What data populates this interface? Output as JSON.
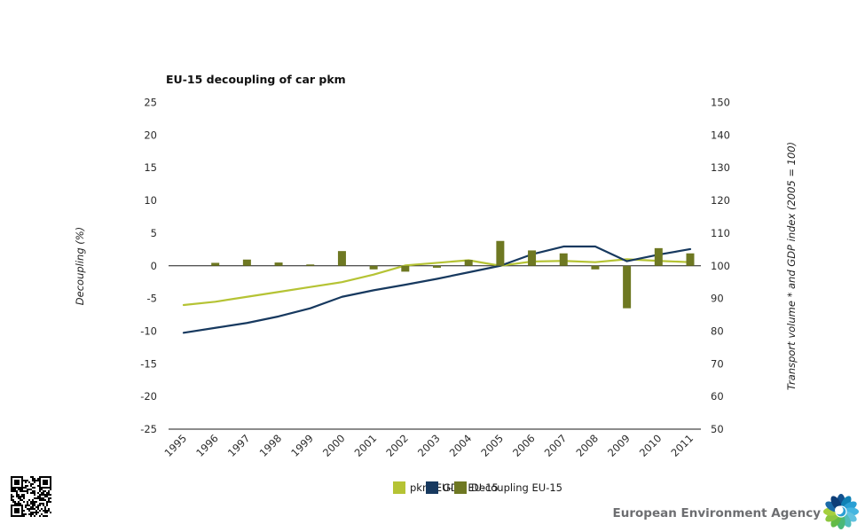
{
  "chart_data": {
    "type": "line+bar",
    "title": "EU-15 decoupling of car pkm",
    "categories": [
      1995,
      1996,
      1997,
      1998,
      1999,
      2000,
      2001,
      2002,
      2003,
      2004,
      2005,
      2006,
      2007,
      2008,
      2009,
      2010,
      2011
    ],
    "series": [
      {
        "name": "pkm EU-15",
        "type": "line",
        "axis": "right",
        "color": "#b5c334",
        "values": [
          88,
          89,
          90.5,
          92,
          93.5,
          95,
          97.3,
          100.1,
          100.9,
          101.7,
          100,
          101.3,
          101.5,
          101.1,
          102,
          101.5,
          101.1
        ]
      },
      {
        "name": "GDP EU-15",
        "type": "line",
        "axis": "right",
        "color": "#17395f",
        "values": [
          79.5,
          81,
          82.5,
          84.5,
          87,
          90.5,
          92.5,
          94.2,
          96,
          98,
          100,
          103.5,
          105.9,
          105.9,
          101.4,
          103.4,
          105.1
        ]
      },
      {
        "name": "Decoupling EU-15",
        "type": "bar",
        "axis": "left",
        "color": "#6e7822",
        "values": [
          0,
          0.45,
          0.95,
          0.5,
          0.2,
          2.25,
          -0.55,
          -0.9,
          -0.3,
          0.9,
          3.8,
          2.35,
          1.9,
          -0.55,
          -6.5,
          2.7,
          1.9
        ]
      }
    ],
    "left_axis": {
      "label": "Decoupling (%)",
      "range": [
        -25,
        25
      ],
      "ticks": [
        25,
        20,
        15,
        10,
        5,
        0,
        -5,
        -10,
        -15,
        -20,
        -25
      ]
    },
    "right_axis": {
      "label": "Transport volume * and GDP index (2005 = 100)",
      "range": [
        50,
        150
      ],
      "ticks": [
        150,
        140,
        130,
        120,
        110,
        100,
        90,
        80,
        70,
        60,
        50
      ]
    },
    "grid": false,
    "legend_position": "bottom"
  },
  "legend": {
    "items": [
      {
        "label": "pkm EU-15",
        "color": "#b5c334"
      },
      {
        "label": "GDP EU-15",
        "color": "#17395f"
      },
      {
        "label": "Decoupling EU-15",
        "color": "#6e7822"
      }
    ]
  },
  "footer": {
    "agency": "European Environment Agency"
  }
}
